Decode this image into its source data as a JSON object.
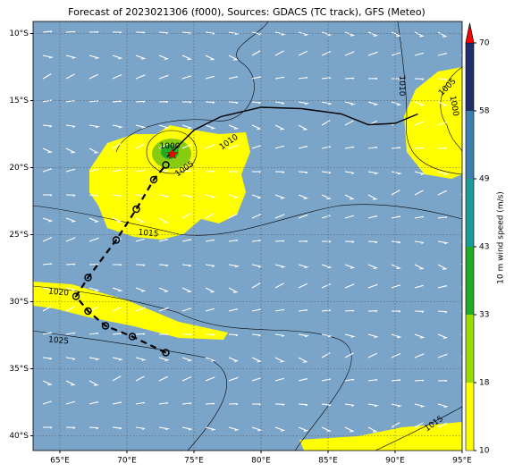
{
  "map": {
    "title": "Forecast of 2023021306 (f000), Sources: GDACS (TC track), GFS (Meteo)",
    "xlim": [
      63,
      95
    ],
    "ylim": [
      -41.1,
      -9.1
    ],
    "xticks": [
      {
        "value": 65,
        "label": "65°E"
      },
      {
        "value": 70,
        "label": "70°E"
      },
      {
        "value": 75,
        "label": "75°E"
      },
      {
        "value": 80,
        "label": "80°E"
      },
      {
        "value": 85,
        "label": "85°E"
      },
      {
        "value": 90,
        "label": "90°E"
      },
      {
        "value": 95,
        "label": "95°E"
      }
    ],
    "yticks": [
      {
        "value": -10,
        "label": "10°S"
      },
      {
        "value": -15,
        "label": "15°S"
      },
      {
        "value": -20,
        "label": "20°S"
      },
      {
        "value": -25,
        "label": "25°S"
      },
      {
        "value": -30,
        "label": "30°S"
      },
      {
        "value": -35,
        "label": "35°S"
      },
      {
        "value": -40,
        "label": "40°S"
      }
    ],
    "grid": true,
    "contour_labels": [
      {
        "text": "1000",
        "lon": 73.2,
        "lat": -18.4,
        "angle": 0
      },
      {
        "text": "1005",
        "lon": 74.3,
        "lat": -20.1,
        "angle": -35
      },
      {
        "text": "1010",
        "lon": 77.6,
        "lat": -18.1,
        "angle": -35
      },
      {
        "text": "1015",
        "lon": 71.6,
        "lat": -24.9,
        "angle": 5
      },
      {
        "text": "1020",
        "lon": 64.9,
        "lat": -29.3,
        "angle": 5
      },
      {
        "text": "1025",
        "lon": 64.9,
        "lat": -32.9,
        "angle": 5
      },
      {
        "text": "1010",
        "lon": 90.5,
        "lat": -13.9,
        "angle": 90
      },
      {
        "text": "1005",
        "lon": 93.9,
        "lat": -14.0,
        "angle": -45
      },
      {
        "text": "1000",
        "lon": 94.4,
        "lat": -15.4,
        "angle": 80
      },
      {
        "text": "1015",
        "lon": 92.9,
        "lat": -39.1,
        "angle": -35
      }
    ],
    "forecast_track": {
      "lon": [
        72.9,
        70.4,
        68.4,
        67.1,
        66.2,
        67.1,
        69.2,
        70.7,
        72.0,
        72.9
      ],
      "lat": [
        -33.8,
        -32.6,
        -31.8,
        -30.7,
        -29.6,
        -28.2,
        -25.4,
        -23.1,
        -20.9,
        -19.8
      ]
    },
    "past_track": {
      "lon": [
        73.0,
        75.0,
        77.0,
        80.0,
        83.0,
        86.0,
        88.0,
        90.0,
        91.7
      ],
      "lat": [
        -19.2,
        -17.2,
        -16.2,
        -15.5,
        -15.6,
        -16.0,
        -16.8,
        -16.7,
        -16.0
      ]
    },
    "storm_position": {
      "lon": 73.4,
      "lat": -19.0
    },
    "colorbar": {
      "label": "10 m wind speed (m/s)",
      "ticks": [
        10,
        18,
        33,
        43,
        49,
        58,
        70
      ],
      "colors": [
        "#ffff00",
        "#99dd00",
        "#22aa22",
        "#1a9a9a",
        "#3a7fb0",
        "#1e2f6e"
      ],
      "extend_color": "#ff0000"
    }
  }
}
